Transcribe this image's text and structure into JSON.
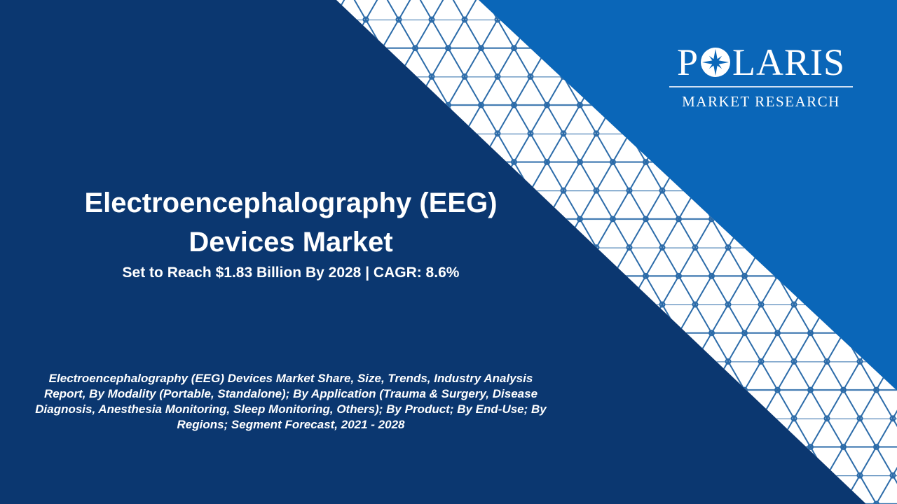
{
  "colors": {
    "navy": "#0b3770",
    "blue": "#0a66b8",
    "band": "#ffffff",
    "lattice": "#2a6aa8"
  },
  "logo": {
    "word_before": "P",
    "word_after": "LARIS",
    "tagline": "MARKET RESEARCH",
    "icon": "compass-star-icon"
  },
  "headline": {
    "line1": "Electroencephalography (EEG)",
    "line2": "Devices Market",
    "subtitle": "Set to Reach $1.83 Billion By 2028 | CAGR: 8.6%"
  },
  "description": "Electroencephalography (EEG) Devices Market Share, Size, Trends, Industry Analysis Report, By Modality (Portable, Standalone); By Application (Trauma & Surgery, Disease Diagnosis, Anesthesia Monitoring, Sleep Monitoring, Others); By Product; By End-Use; By Regions; Segment Forecast, 2021 - 2028"
}
